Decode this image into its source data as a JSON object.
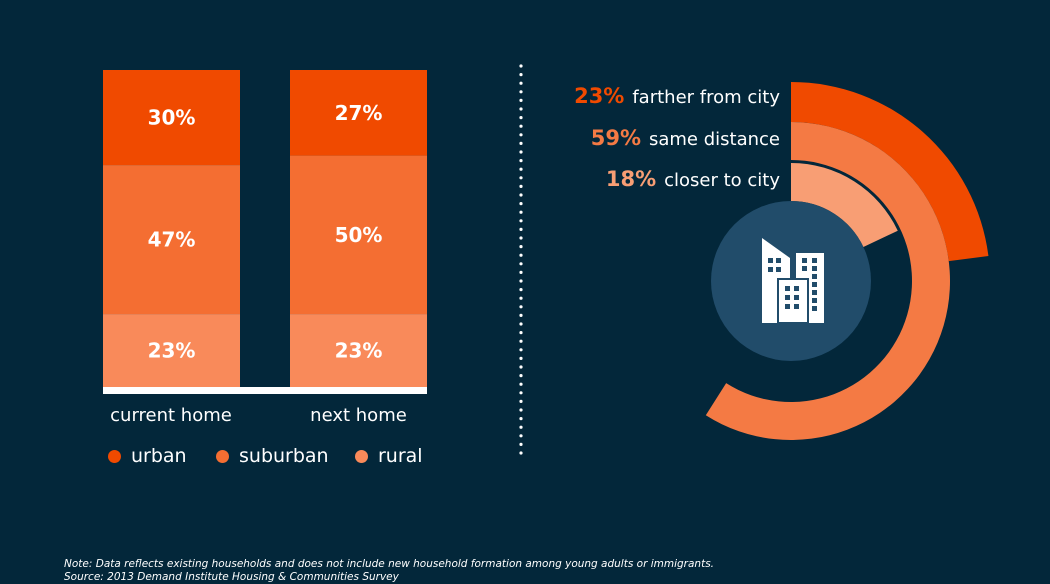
{
  "chart_data": [
    {
      "type": "bar",
      "stacked": true,
      "categories": [
        "current home",
        "next home"
      ],
      "series": [
        {
          "name": "urban",
          "values": [
            30,
            27
          ],
          "color": "#f04a00"
        },
        {
          "name": "suburban",
          "values": [
            47,
            50
          ],
          "color": "#f46e32"
        },
        {
          "name": "rural",
          "values": [
            23,
            23
          ],
          "color": "#f98a5a"
        }
      ],
      "labels": [
        [
          "30%",
          "47%",
          "23%"
        ],
        [
          "27%",
          "50%",
          "23%"
        ]
      ],
      "ylim": [
        0,
        100
      ],
      "legend": "bottom"
    },
    {
      "type": "pie",
      "style": "radial-bar",
      "slices": [
        {
          "label": "farther from city",
          "value": 23,
          "pct": "23%",
          "color": "#f04a00"
        },
        {
          "label": "same distance",
          "value": 59,
          "pct": "59%",
          "color": "#f47a44"
        },
        {
          "label": "closer to city",
          "value": 18,
          "pct": "18%",
          "color": "#f89e74"
        }
      ],
      "center_icon": "city-buildings-icon"
    }
  ],
  "note": "Note: Data reflects existing households and does not include new household formation among young adults or immigrants.",
  "source": "Source: 2013 Demand Institute Housing & Communities Survey"
}
